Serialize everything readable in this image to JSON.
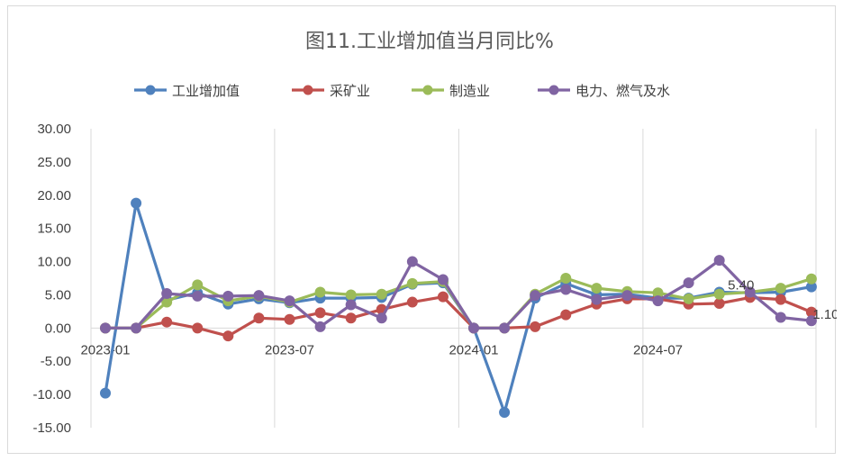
{
  "chart_data": {
    "type": "line",
    "title": "图11.工业增加值当月同比%",
    "ylim": [
      -15,
      30
    ],
    "ytick_step": 5,
    "ytick_labels": [
      "30.00",
      "25.00",
      "20.00",
      "15.00",
      "10.00",
      "5.00",
      "0.00",
      "-5.00",
      "-10.00",
      "-15.00"
    ],
    "x": [
      "2023-01",
      "2023-02",
      "2023-03",
      "2023-04",
      "2023-05",
      "2023-06",
      "2023-07",
      "2023-08",
      "2023-09",
      "2023-10",
      "2023-11",
      "2023-12",
      "2024-01",
      "2024-02",
      "2024-03",
      "2024-04",
      "2024-05",
      "2024-06",
      "2024-07",
      "2024-08",
      "2024-09",
      "2024-10",
      "2024-11",
      "2024-12"
    ],
    "xtick_labels": [
      "2023-01",
      "2023-07",
      "2024-01",
      "2024-07"
    ],
    "xtick_index": [
      0,
      6,
      12,
      18
    ],
    "grid": "vertical",
    "legend": "top",
    "series": [
      {
        "name": "工业增加值",
        "color": "#4f81bd",
        "values": [
          -9.8,
          18.8,
          4.2,
          5.3,
          3.6,
          4.4,
          3.8,
          4.5,
          4.5,
          4.6,
          6.6,
          6.8,
          0.0,
          -12.7,
          4.5,
          6.7,
          5.0,
          5.1,
          4.5,
          4.5,
          5.4,
          5.3,
          5.4,
          6.2
        ]
      },
      {
        "name": "采矿业",
        "color": "#c0504d",
        "values": [
          0.0,
          0.0,
          0.9,
          0.0,
          -1.2,
          1.5,
          1.3,
          2.3,
          1.5,
          2.8,
          3.9,
          4.7,
          0.0,
          0.0,
          0.2,
          2.0,
          3.6,
          4.4,
          4.4,
          3.6,
          3.7,
          4.6,
          4.3,
          2.4
        ]
      },
      {
        "name": "制造业",
        "color": "#9bbb59",
        "values": [
          0.0,
          0.0,
          3.9,
          6.5,
          4.1,
          4.8,
          3.9,
          5.4,
          5.0,
          5.1,
          6.7,
          7.0,
          0.0,
          0.0,
          5.1,
          7.5,
          6.0,
          5.5,
          5.3,
          4.4,
          5.1,
          5.4,
          6.0,
          7.4
        ]
      },
      {
        "name": "电力、燃气及水",
        "color": "#8064a2",
        "values": [
          0.0,
          0.0,
          5.2,
          4.8,
          4.8,
          4.9,
          4.1,
          0.2,
          3.5,
          1.5,
          10.0,
          7.3,
          0.0,
          0.0,
          4.9,
          5.8,
          4.3,
          4.9,
          4.1,
          6.8,
          10.2,
          5.4,
          1.6,
          1.1
        ]
      }
    ],
    "data_labels": [
      {
        "series": 3,
        "index": 21,
        "text": "5.40"
      },
      {
        "series": 3,
        "index": 23,
        "text": "1.10"
      }
    ]
  }
}
